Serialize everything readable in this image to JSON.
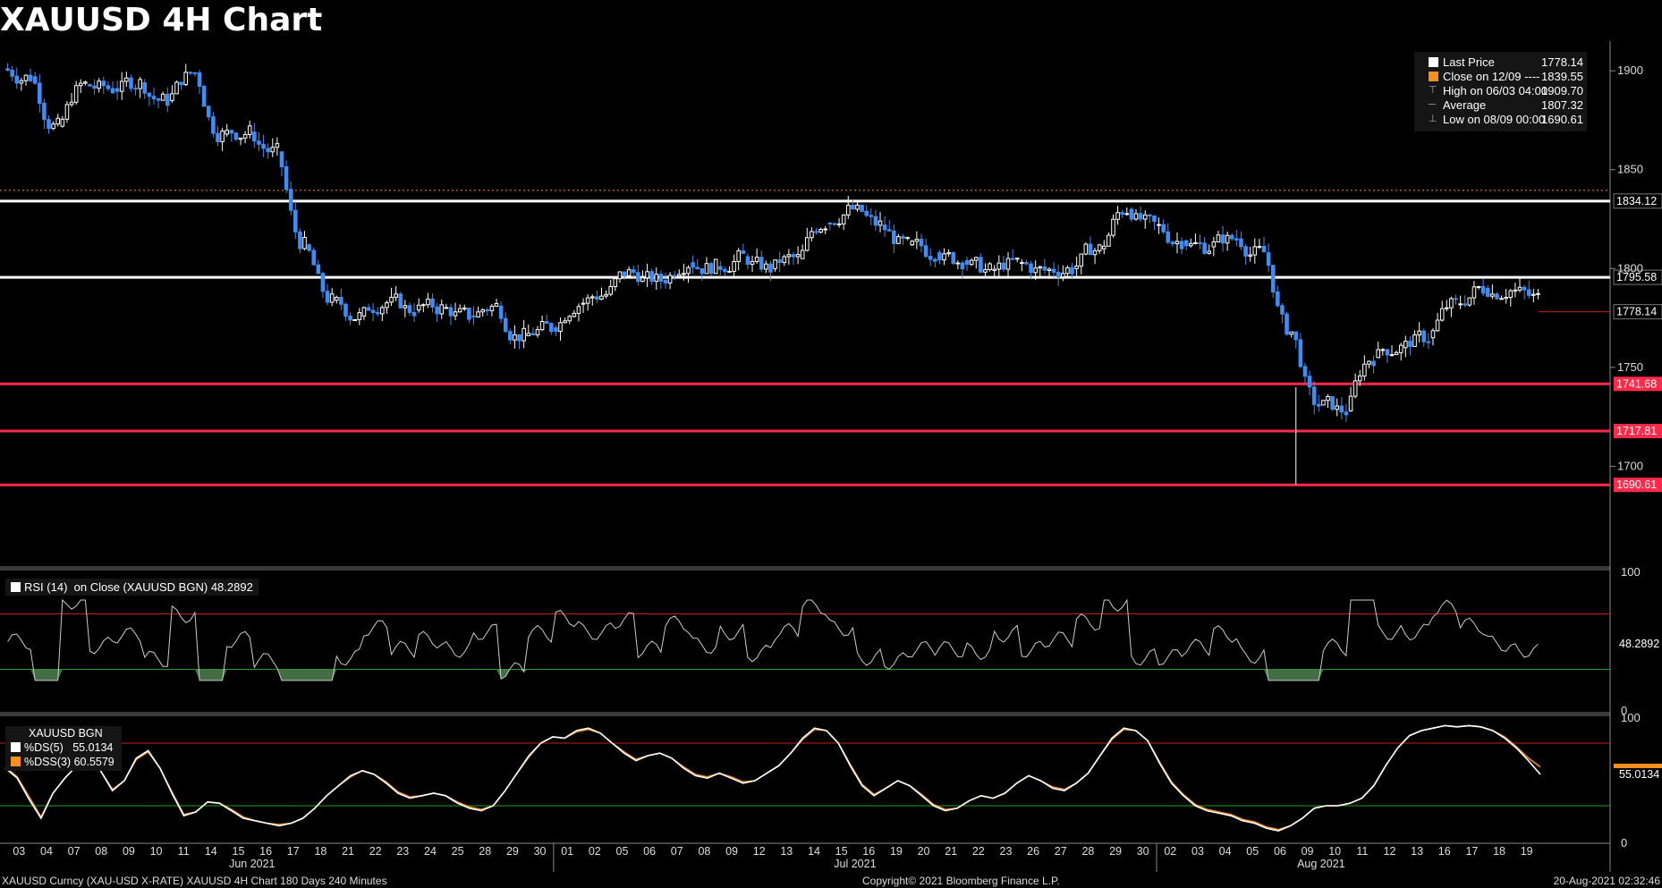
{
  "title": "XAUUSD 4H Chart",
  "legend": [
    {
      "label": "Last Price",
      "value": "1778.14",
      "marker": "square",
      "color": "#ffffff"
    },
    {
      "label": "Close on 12/09 ----",
      "value": "1839.55",
      "marker": "square",
      "color": "#f5901e"
    },
    {
      "label": "High on 06/03 04:00",
      "value": "1909.70",
      "marker": "high",
      "color": "#aaaaaa"
    },
    {
      "label": "Average",
      "value": "1807.32",
      "marker": "avg",
      "color": "#aaaaaa"
    },
    {
      "label": "Low on 08/09 00:00",
      "value": "1690.61",
      "marker": "low",
      "color": "#aaaaaa"
    }
  ],
  "rsi_label": {
    "name": "RSI (14)",
    "basis": "on Close (XAUUSD BGN)",
    "value": "48.2892"
  },
  "stoch_label": {
    "ticker": "XAUUSD BGN",
    "ds": "%DS(5)",
    "ds_value": "55.0134",
    "dss": "%DSS(3)",
    "dss_value": "60.5579"
  },
  "footer": {
    "left": "XAUUSD Curncy (XAU-USD X-RATE) XAUUSD 4H Chart 180 Days 240 Minutes",
    "center": "Copyright© 2021 Bloomberg Finance L.P.",
    "right": "20-Aug-2021 02:32:46"
  },
  "chart_data": {
    "type": "candlestick",
    "price_ylim": [
      1650,
      1915
    ],
    "price_ticks": [
      1700,
      1750,
      1800,
      1850,
      1900
    ],
    "horizontal_levels": [
      {
        "value": 1834.12,
        "color": "#ffffff",
        "label": "1834.12"
      },
      {
        "value": 1795.58,
        "color": "#ffffff",
        "label": "1795.58"
      },
      {
        "value": 1741.68,
        "color": "#ff2a4a",
        "label": "1741.68"
      },
      {
        "value": 1717.81,
        "color": "#ff2a4a",
        "label": "1717.81"
      },
      {
        "value": 1690.61,
        "color": "#ff2a4a",
        "label": "1690.61"
      }
    ],
    "previous_close_line": 1839.55,
    "last_price": {
      "value": 1778.14,
      "label": "1778.14"
    },
    "day_labels": [
      "03",
      "04",
      "07",
      "08",
      "09",
      "10",
      "11",
      "14",
      "15",
      "16",
      "17",
      "18",
      "21",
      "22",
      "23",
      "24",
      "25",
      "28",
      "29",
      "30",
      "01",
      "02",
      "05",
      "06",
      "07",
      "08",
      "09",
      "12",
      "13",
      "14",
      "15",
      "16",
      "19",
      "20",
      "21",
      "22",
      "23",
      "26",
      "27",
      "28",
      "29",
      "30",
      "02",
      "03",
      "04",
      "05",
      "06",
      "09",
      "10",
      "11",
      "12",
      "13",
      "16",
      "17",
      "18",
      "19"
    ],
    "month_labels": [
      {
        "label": "Jun 2021",
        "day_index": 9
      },
      {
        "label": "Jul 2021",
        "day_index": 31
      },
      {
        "label": "Aug 2021",
        "day_index": 48
      }
    ],
    "daily_closes": [
      1897,
      1872,
      1893,
      1891,
      1894,
      1885,
      1899,
      1868,
      1869,
      1859,
      1812,
      1784,
      1776,
      1783,
      1779,
      1780,
      1776,
      1781,
      1766,
      1770,
      1782,
      1787,
      1798,
      1794,
      1803,
      1801,
      1806,
      1800,
      1805,
      1823,
      1830,
      1822,
      1812,
      1808,
      1804,
      1799,
      1803,
      1799,
      1800,
      1810,
      1830,
      1822,
      1814,
      1811,
      1815,
      1808,
      1768,
      1731,
      1728,
      1755,
      1760,
      1765,
      1782,
      1790,
      1789,
      1785
    ],
    "rsi": {
      "period": 14,
      "ylim": [
        0,
        100
      ],
      "ticks": [
        0,
        100
      ],
      "overbought": 70,
      "oversold": 30,
      "last": 48.2892
    },
    "stochastic": {
      "ylim": [
        0,
        100
      ],
      "ticks": [
        0,
        100
      ],
      "overbought": 80,
      "oversold": 30,
      "series": [
        {
          "name": "%DS(5)",
          "color": "#ffffff",
          "last": 55.0134,
          "values": [
            60,
            52,
            35,
            20,
            40,
            52,
            62,
            70,
            58,
            42,
            50,
            68,
            74,
            60,
            40,
            22,
            25,
            33,
            32,
            26,
            20,
            18,
            16,
            14,
            16,
            20,
            28,
            38,
            46,
            54,
            58,
            55,
            48,
            40,
            36,
            38,
            40,
            38,
            32,
            28,
            26,
            30,
            42,
            56,
            70,
            80,
            85,
            84,
            90,
            92,
            88,
            80,
            72,
            66,
            70,
            72,
            68,
            60,
            54,
            52,
            56,
            52,
            48,
            50,
            56,
            62,
            72,
            84,
            92,
            90,
            80,
            62,
            46,
            38,
            44,
            50,
            46,
            38,
            30,
            26,
            28,
            34,
            38,
            36,
            40,
            48,
            54,
            50,
            44,
            42,
            48,
            56,
            70,
            84,
            92,
            90,
            82,
            64,
            48,
            38,
            30,
            26,
            24,
            22,
            18,
            16,
            12,
            10,
            14,
            20,
            28,
            30,
            30,
            32,
            36,
            46,
            62,
            76,
            86,
            90,
            92,
            94,
            93,
            94,
            93,
            90,
            84,
            76,
            66,
            55
          ]
        },
        {
          "name": "%DSS(3)",
          "color": "#f5901e",
          "last": 60.5579,
          "values": [
            61,
            53,
            37,
            21,
            40,
            52,
            62,
            69,
            58,
            43,
            50,
            67,
            73,
            60,
            41,
            23,
            25,
            33,
            32,
            27,
            21,
            18,
            16,
            15,
            16,
            20,
            28,
            38,
            46,
            53,
            58,
            55,
            49,
            41,
            37,
            38,
            40,
            38,
            33,
            29,
            27,
            30,
            42,
            56,
            69,
            80,
            85,
            84,
            89,
            91,
            88,
            80,
            73,
            67,
            70,
            72,
            68,
            61,
            55,
            53,
            56,
            53,
            49,
            50,
            56,
            62,
            72,
            83,
            91,
            90,
            80,
            63,
            47,
            39,
            44,
            50,
            46,
            39,
            31,
            27,
            28,
            34,
            38,
            36,
            40,
            48,
            54,
            50,
            45,
            43,
            48,
            56,
            70,
            83,
            91,
            90,
            82,
            65,
            49,
            39,
            31,
            27,
            25,
            23,
            19,
            17,
            13,
            11,
            14,
            20,
            28,
            30,
            30,
            32,
            36,
            46,
            62,
            76,
            86,
            90,
            92,
            94,
            93,
            94,
            93,
            90,
            85,
            77,
            68,
            61
          ]
        }
      ]
    },
    "colors": {
      "up": "#ffffff",
      "down": "#3d8df5",
      "level_white": "#ffffff",
      "level_red": "#ff2a4a",
      "prev_close": "#f5901e",
      "rsi_line": "#cccccc",
      "rsi_fill": "#4a7a4a",
      "overbought": "#c81e1e",
      "oversold": "#1fa01f"
    }
  }
}
